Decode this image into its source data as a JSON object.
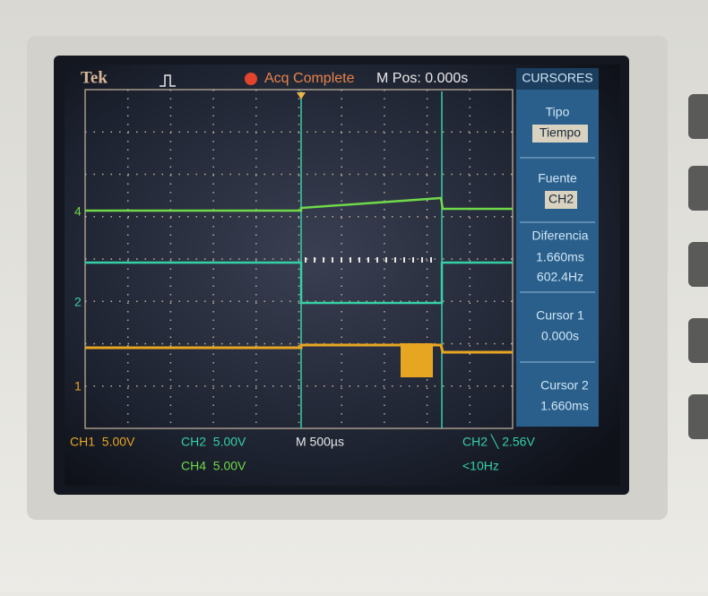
{
  "header": {
    "brand": "Tek",
    "status": "Acq Complete",
    "position": "M Pos: 0.000s"
  },
  "menu": {
    "title": "CURSORES",
    "items": [
      {
        "label": "Tipo",
        "value": "Tiempo"
      },
      {
        "label": "Fuente",
        "value": "CH2"
      },
      {
        "label": "Diferencia",
        "values": [
          "1.660ms",
          "602.4Hz"
        ]
      },
      {
        "label": "Cursor 1",
        "value": "0.000s"
      },
      {
        "label": "Cursor 2",
        "value": "1.660ms"
      }
    ]
  },
  "markers": [
    "4",
    "2",
    "1"
  ],
  "footer": {
    "ch1": "CH1  5.00V",
    "ch2": "CH2  5.00V",
    "timebase": "M 500µs",
    "trigger": "CH2 ╲ 2.56V",
    "ch4": "CH4  5.00V",
    "frequency": "<10Hz"
  }
}
